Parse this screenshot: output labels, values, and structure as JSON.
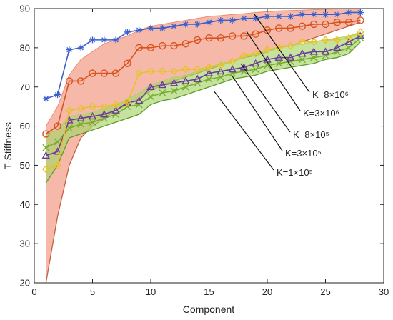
{
  "chart_data": {
    "type": "line",
    "xlabel": "Component",
    "ylabel": "T-Stiffness",
    "xlim": [
      0,
      30
    ],
    "ylim": [
      20,
      90
    ],
    "xticks": [
      0,
      5,
      10,
      15,
      20,
      25,
      30
    ],
    "yticks": [
      20,
      30,
      40,
      50,
      60,
      70,
      80,
      90
    ],
    "grid": false,
    "x": [
      1,
      2,
      3,
      4,
      5,
      6,
      7,
      8,
      9,
      10,
      11,
      12,
      13,
      14,
      15,
      16,
      17,
      18,
      19,
      20,
      21,
      22,
      23,
      24,
      25,
      26,
      27,
      28
    ],
    "series": [
      {
        "name": "K=8×10⁶",
        "color": "#3a5fcd",
        "marker": "star",
        "values": [
          67,
          68,
          79.5,
          80,
          82,
          82,
          82,
          84,
          84.5,
          85,
          85,
          85.5,
          86,
          86,
          86.5,
          87,
          87,
          87.5,
          87.5,
          88,
          88,
          88,
          88.5,
          88.5,
          88.5,
          88.5,
          89,
          89
        ]
      },
      {
        "name": "K=3×10⁶",
        "color": "#d9531e",
        "marker": "circle",
        "values": [
          58,
          60,
          71.5,
          71.5,
          73.5,
          73.5,
          73.5,
          76,
          80,
          80,
          80.5,
          80.5,
          81,
          82,
          82.5,
          82.5,
          83,
          83,
          83.5,
          84.5,
          85,
          85,
          85.5,
          86,
          86,
          86.5,
          86.5,
          87
        ]
      },
      {
        "name": "K=8×10⁵",
        "color": "#e6c229",
        "marker": "diamond",
        "values": [
          49,
          50,
          64,
          64.5,
          65,
          65,
          65.5,
          66,
          73.5,
          74,
          74,
          74,
          74.5,
          74.5,
          75,
          75.5,
          76.5,
          78,
          78.5,
          79.5,
          80,
          80.5,
          81.5,
          81.5,
          82,
          82,
          82.5,
          84
        ]
      },
      {
        "name": "K=3×10⁵",
        "color": "#6a3d9a",
        "marker": "triangle",
        "values": [
          52.5,
          53.5,
          61.5,
          62,
          62.5,
          63,
          64,
          66,
          66.5,
          70,
          70.5,
          71,
          71.5,
          72,
          73.5,
          74,
          74.5,
          75,
          76,
          77,
          77.5,
          77.5,
          78.5,
          79,
          79,
          80,
          81.5,
          83
        ]
      },
      {
        "name": "K=1×10⁵",
        "color": "#77ac30",
        "marker": "cross",
        "values": [
          54.5,
          56,
          59.5,
          60.5,
          61,
          62,
          63,
          65,
          65.5,
          67.5,
          68.5,
          69,
          70,
          71,
          72,
          72.5,
          73.5,
          74,
          74.5,
          75.5,
          76,
          76.5,
          77,
          77.5,
          78,
          79,
          80,
          82.5
        ]
      }
    ],
    "bands": [
      {
        "color": "#f08a6f",
        "lower": [
          20,
          37,
          50,
          57,
          60,
          62,
          64,
          65.5,
          67,
          69,
          70.5,
          71.5,
          72.5,
          73.5,
          74.5,
          75.5,
          76.5,
          77.5,
          78,
          79,
          80,
          80.5,
          81.5,
          82.5,
          83.5,
          84.5,
          85.5,
          86.5
        ],
        "upper": [
          60,
          65,
          73,
          77,
          79,
          81,
          82,
          83,
          84.5,
          85.5,
          86,
          86.5,
          87,
          87.5,
          88,
          88.2,
          88.5,
          88.7,
          89,
          89.2,
          89.4,
          89.5,
          89.6,
          89.7,
          89.8,
          89.9,
          90,
          90
        ]
      },
      {
        "color": "#a7d46a",
        "lower": [
          45.5,
          50,
          57,
          58,
          59,
          60,
          61,
          62,
          63,
          65.5,
          66.5,
          67,
          68,
          69,
          70,
          71,
          72,
          72.5,
          73,
          74,
          74.5,
          75,
          75.5,
          76,
          77,
          77.5,
          78.5,
          81.5
        ],
        "upper": [
          58,
          59,
          62.5,
          63,
          63.5,
          64.5,
          65.5,
          67,
          68.5,
          70.5,
          71.5,
          72.5,
          73,
          74,
          75,
          76,
          76.5,
          77.5,
          78.5,
          79,
          80,
          80.5,
          81,
          81.5,
          82,
          82.5,
          83,
          84
        ]
      }
    ],
    "annotations": [
      {
        "text": "K=8×10⁶",
        "series": 0
      },
      {
        "text": "K=3×10⁶",
        "series": 1
      },
      {
        "text": "K=8×10⁵",
        "series": 2
      },
      {
        "text": "K=3×10⁵",
        "series": 3
      },
      {
        "text": "K=1×10⁵",
        "series": 4
      }
    ]
  }
}
